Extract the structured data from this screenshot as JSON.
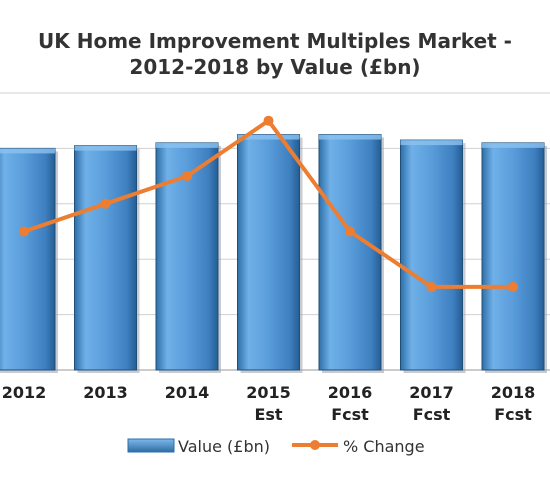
{
  "chart_data": {
    "type": "bar",
    "title": "UK Home Improvement Multiples Market - 2012-2018 by Value (£bn)",
    "title_lines": [
      "UK Home Improvement Multiples Market -",
      "2012-2018 by Value (£bn)"
    ],
    "categories": [
      {
        "year": "2012",
        "sub": ""
      },
      {
        "year": "2013",
        "sub": ""
      },
      {
        "year": "2014",
        "sub": ""
      },
      {
        "year": "2015",
        "sub": "Est"
      },
      {
        "year": "2016",
        "sub": "Fcst"
      },
      {
        "year": "2017",
        "sub": "Fcst"
      },
      {
        "year": "2018",
        "sub": "Fcst"
      }
    ],
    "series": [
      {
        "name": "Value (£bn)",
        "kind": "bar",
        "values": [
          8.0,
          8.1,
          8.2,
          8.5,
          8.5,
          8.3,
          8.2
        ]
      },
      {
        "name": "% Change",
        "kind": "line",
        "values": [
          0.0,
          1.0,
          2.0,
          4.0,
          0.0,
          -2.0,
          -2.0
        ]
      }
    ],
    "ylim": [
      0,
      10
    ],
    "y2lim": [
      -5,
      5
    ],
    "grid": true,
    "legend_position": "bottom",
    "colors": {
      "bar": "#5b9bd5",
      "bar_dark": "#2e6da4",
      "line": "#ed7d31"
    }
  }
}
